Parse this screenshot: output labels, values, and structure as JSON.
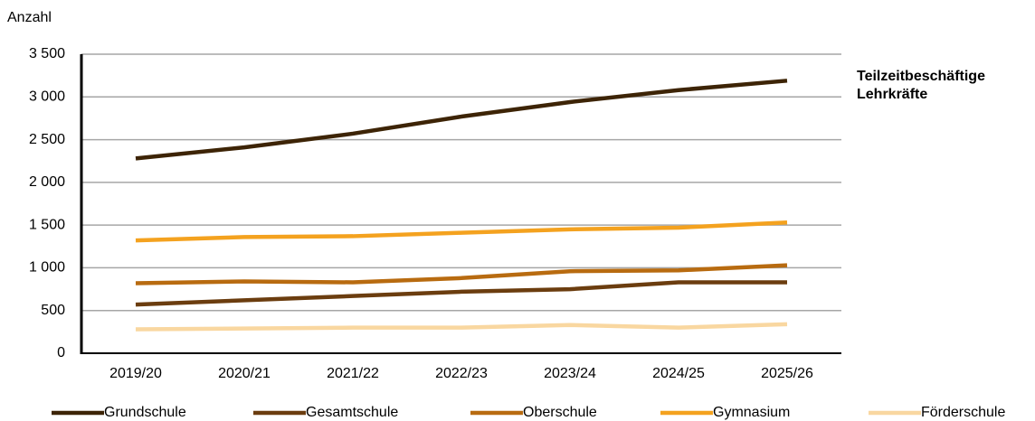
{
  "chart_data": {
    "type": "line",
    "y_label": "Anzahl",
    "annotation": [
      "Teilzeitbeschäftige",
      "Lehrkräfte"
    ],
    "categories": [
      "2019/20",
      "2020/21",
      "2021/22",
      "2022/23",
      "2023/24",
      "2024/25",
      "2025/26"
    ],
    "series": [
      {
        "name": "Grundschule",
        "color": "#3d2406",
        "values": [
          2280,
          2410,
          2570,
          2770,
          2940,
          3080,
          3190
        ]
      },
      {
        "name": "Gesamtschule",
        "color": "#6b3d0f",
        "values": [
          570,
          620,
          670,
          720,
          750,
          830,
          830
        ]
      },
      {
        "name": "Oberschule",
        "color": "#b86b10",
        "values": [
          820,
          840,
          830,
          880,
          960,
          970,
          1030
        ]
      },
      {
        "name": "Gymnasium",
        "color": "#f4a21f",
        "values": [
          1320,
          1360,
          1370,
          1410,
          1450,
          1470,
          1530
        ]
      },
      {
        "name": "Förderschule",
        "color": "#f9d7a0",
        "values": [
          280,
          290,
          300,
          300,
          330,
          300,
          340
        ]
      }
    ],
    "ylim": [
      0,
      3500
    ],
    "yticks": [
      0,
      500,
      {
        "value": 1000,
        "label": "1 000"
      },
      {
        "value": 1500,
        "label": "1 500"
      },
      {
        "value": 2000,
        "label": "2 000"
      },
      {
        "value": 2500,
        "label": "2 500"
      },
      {
        "value": 3000,
        "label": "3 000"
      },
      {
        "value": 3500,
        "label": "3 500"
      }
    ],
    "grid": true,
    "legend": "bottom"
  }
}
